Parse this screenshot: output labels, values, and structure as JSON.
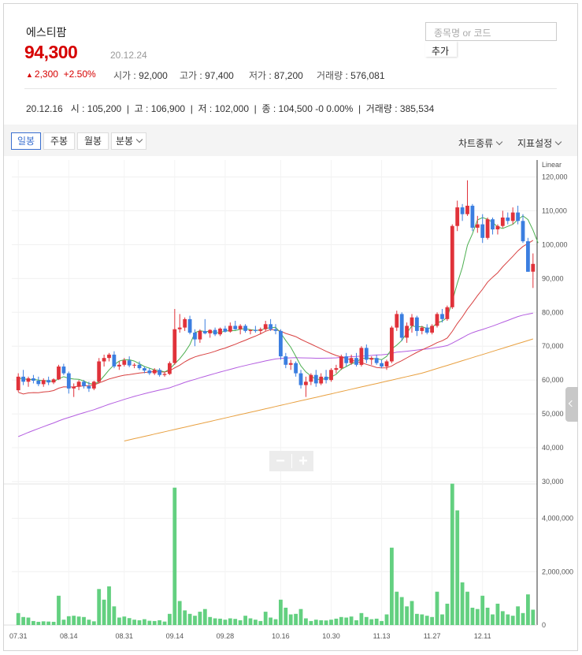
{
  "header": {
    "stock_name": "에스티팜",
    "price": "94,300",
    "date": "20.12.24",
    "change_arrow": "▲",
    "change": "2,300",
    "change_pct": "+2.50%",
    "open_label": "시가",
    "open": "92,000",
    "high_label": "고가",
    "high": "97,400",
    "low_label": "저가",
    "low": "87,200",
    "volume_label": "거래량",
    "volume": "576,081"
  },
  "search": {
    "placeholder": "종목명 or 코드",
    "add_label": "추가"
  },
  "daily_info": {
    "date": "20.12.16",
    "open_label": "시",
    "open": "105,200",
    "high_label": "고",
    "high": "106,900",
    "low_label": "저",
    "low": "102,000",
    "close_label": "종",
    "close": "104,500",
    "change": "-0",
    "change_pct": "0.00%",
    "volume_label": "거래량",
    "volume": "385,534"
  },
  "toolbar": {
    "tabs": [
      "일봉",
      "주봉",
      "월봉",
      "분봉"
    ],
    "active_tab": "일봉",
    "chart_type_label": "차트종류",
    "indicator_label": "지표설정"
  },
  "colors": {
    "up": "#e0323a",
    "down": "#3b7ee0",
    "volume": "#63d080",
    "ma5": "#4caf50",
    "ma20": "#d84040",
    "ma60": "#b45ee0",
    "ma120": "#e8a040",
    "price": "#d60000",
    "accent": "#3a6fd0"
  },
  "chart_data": {
    "type": "candlestick",
    "scale_label": "Linear",
    "price_ticks": [
      "120,000",
      "110,000",
      "100,000",
      "90,000",
      "80,000",
      "70,000",
      "60,000",
      "50,000",
      "40,000",
      "30,000"
    ],
    "price_range": [
      30000,
      125000
    ],
    "volume_ticks": [
      "4,000,000",
      "2,000,000",
      "0"
    ],
    "volume_range": [
      0,
      5200000
    ],
    "x_ticks": [
      {
        "label": "07.31",
        "i": 0
      },
      {
        "label": "08.14",
        "i": 10
      },
      {
        "label": "08.31",
        "i": 21
      },
      {
        "label": "09.14",
        "i": 31
      },
      {
        "label": "09.28",
        "i": 41
      },
      {
        "label": "10.16",
        "i": 52
      },
      {
        "label": "10.30",
        "i": 62
      },
      {
        "label": "11.13",
        "i": 72
      },
      {
        "label": "11.27",
        "i": 82
      },
      {
        "label": "12.11",
        "i": 92
      }
    ],
    "candles": [
      {
        "o": 57000,
        "h": 62000,
        "l": 56500,
        "c": 61000,
        "v": 450000
      },
      {
        "o": 61000,
        "h": 63000,
        "l": 58500,
        "c": 59500,
        "v": 300000
      },
      {
        "o": 59500,
        "h": 61000,
        "l": 58000,
        "c": 60500,
        "v": 280000
      },
      {
        "o": 60500,
        "h": 61500,
        "l": 59000,
        "c": 59800,
        "v": 150000
      },
      {
        "o": 59800,
        "h": 61000,
        "l": 58200,
        "c": 58800,
        "v": 120000
      },
      {
        "o": 58800,
        "h": 60500,
        "l": 58000,
        "c": 60000,
        "v": 140000
      },
      {
        "o": 60000,
        "h": 61000,
        "l": 58500,
        "c": 59300,
        "v": 130000
      },
      {
        "o": 59300,
        "h": 60500,
        "l": 58800,
        "c": 60200,
        "v": 120000
      },
      {
        "o": 60200,
        "h": 64500,
        "l": 60000,
        "c": 64000,
        "v": 1100000
      },
      {
        "o": 64000,
        "h": 64800,
        "l": 61500,
        "c": 62000,
        "v": 200000
      },
      {
        "o": 62000,
        "h": 62500,
        "l": 56000,
        "c": 57500,
        "v": 330000
      },
      {
        "o": 57500,
        "h": 59000,
        "l": 55000,
        "c": 58000,
        "v": 350000
      },
      {
        "o": 58000,
        "h": 60000,
        "l": 57000,
        "c": 59500,
        "v": 320000
      },
      {
        "o": 59500,
        "h": 60000,
        "l": 57500,
        "c": 58200,
        "v": 300000
      },
      {
        "o": 58200,
        "h": 59500,
        "l": 56500,
        "c": 57500,
        "v": 200000
      },
      {
        "o": 57500,
        "h": 59800,
        "l": 57000,
        "c": 59500,
        "v": 140000
      },
      {
        "o": 59500,
        "h": 66500,
        "l": 59000,
        "c": 65500,
        "v": 1350000
      },
      {
        "o": 65500,
        "h": 67500,
        "l": 64000,
        "c": 66500,
        "v": 950000
      },
      {
        "o": 66500,
        "h": 68000,
        "l": 65500,
        "c": 67500,
        "v": 1450000
      },
      {
        "o": 67500,
        "h": 68500,
        "l": 63500,
        "c": 64000,
        "v": 700000
      },
      {
        "o": 64000,
        "h": 65500,
        "l": 63000,
        "c": 64500,
        "v": 280000
      },
      {
        "o": 64500,
        "h": 66500,
        "l": 64000,
        "c": 65800,
        "v": 320000
      },
      {
        "o": 65800,
        "h": 67000,
        "l": 63800,
        "c": 64300,
        "v": 260000
      },
      {
        "o": 64300,
        "h": 65000,
        "l": 63500,
        "c": 64500,
        "v": 200000
      },
      {
        "o": 64500,
        "h": 65500,
        "l": 63000,
        "c": 63500,
        "v": 180000
      },
      {
        "o": 63500,
        "h": 64000,
        "l": 62000,
        "c": 62800,
        "v": 220000
      },
      {
        "o": 62800,
        "h": 63500,
        "l": 61500,
        "c": 62000,
        "v": 160000
      },
      {
        "o": 62000,
        "h": 63500,
        "l": 61500,
        "c": 63000,
        "v": 150000
      },
      {
        "o": 63000,
        "h": 63500,
        "l": 61000,
        "c": 61500,
        "v": 180000
      },
      {
        "o": 61500,
        "h": 62500,
        "l": 61000,
        "c": 61800,
        "v": 130000
      },
      {
        "o": 61800,
        "h": 65500,
        "l": 61500,
        "c": 65000,
        "v": 420000
      },
      {
        "o": 65000,
        "h": 81000,
        "l": 64500,
        "c": 75000,
        "v": 5150000
      },
      {
        "o": 75000,
        "h": 79500,
        "l": 74000,
        "c": 75500,
        "v": 900000
      },
      {
        "o": 75500,
        "h": 78500,
        "l": 74500,
        "c": 78000,
        "v": 550000
      },
      {
        "o": 78000,
        "h": 79000,
        "l": 73500,
        "c": 74000,
        "v": 420000
      },
      {
        "o": 74000,
        "h": 75000,
        "l": 70000,
        "c": 72000,
        "v": 350000
      },
      {
        "o": 72000,
        "h": 75000,
        "l": 71000,
        "c": 74500,
        "v": 500000
      },
      {
        "o": 74500,
        "h": 78000,
        "l": 73500,
        "c": 73800,
        "v": 600000
      },
      {
        "o": 73800,
        "h": 75000,
        "l": 72500,
        "c": 74800,
        "v": 300000
      },
      {
        "o": 74800,
        "h": 75500,
        "l": 73000,
        "c": 73500,
        "v": 250000
      },
      {
        "o": 73500,
        "h": 75500,
        "l": 73000,
        "c": 75200,
        "v": 240000
      },
      {
        "o": 75200,
        "h": 76000,
        "l": 74000,
        "c": 74300,
        "v": 200000
      },
      {
        "o": 74300,
        "h": 77000,
        "l": 74000,
        "c": 76000,
        "v": 250000
      },
      {
        "o": 76000,
        "h": 77500,
        "l": 74800,
        "c": 75000,
        "v": 230000
      },
      {
        "o": 75000,
        "h": 76500,
        "l": 73500,
        "c": 76000,
        "v": 180000
      },
      {
        "o": 76000,
        "h": 76500,
        "l": 74000,
        "c": 74500,
        "v": 350000
      },
      {
        "o": 74500,
        "h": 75000,
        "l": 73500,
        "c": 74800,
        "v": 250000
      },
      {
        "o": 74800,
        "h": 76000,
        "l": 74000,
        "c": 74500,
        "v": 200000
      },
      {
        "o": 74500,
        "h": 75500,
        "l": 73500,
        "c": 75000,
        "v": 150000
      },
      {
        "o": 75000,
        "h": 77500,
        "l": 74500,
        "c": 76500,
        "v": 500000
      },
      {
        "o": 76500,
        "h": 78000,
        "l": 74500,
        "c": 75000,
        "v": 280000
      },
      {
        "o": 75000,
        "h": 76500,
        "l": 73500,
        "c": 74500,
        "v": 220000
      },
      {
        "o": 74500,
        "h": 75000,
        "l": 66000,
        "c": 67000,
        "v": 950000
      },
      {
        "o": 67000,
        "h": 68000,
        "l": 63500,
        "c": 64500,
        "v": 650000
      },
      {
        "o": 64500,
        "h": 66000,
        "l": 63000,
        "c": 65000,
        "v": 400000
      },
      {
        "o": 65000,
        "h": 65500,
        "l": 61000,
        "c": 62000,
        "v": 420000
      },
      {
        "o": 62000,
        "h": 63000,
        "l": 57500,
        "c": 58500,
        "v": 600000
      },
      {
        "o": 58500,
        "h": 61000,
        "l": 55000,
        "c": 59500,
        "v": 250000
      },
      {
        "o": 59500,
        "h": 62000,
        "l": 58500,
        "c": 61500,
        "v": 150000
      },
      {
        "o": 61500,
        "h": 63000,
        "l": 58000,
        "c": 59000,
        "v": 200000
      },
      {
        "o": 59000,
        "h": 62000,
        "l": 58500,
        "c": 61000,
        "v": 180000
      },
      {
        "o": 61000,
        "h": 63000,
        "l": 59000,
        "c": 60000,
        "v": 170000
      },
      {
        "o": 60000,
        "h": 63500,
        "l": 59500,
        "c": 63000,
        "v": 200000
      },
      {
        "o": 63000,
        "h": 64500,
        "l": 62000,
        "c": 63500,
        "v": 240000
      },
      {
        "o": 63500,
        "h": 67500,
        "l": 63000,
        "c": 67000,
        "v": 300000
      },
      {
        "o": 67000,
        "h": 68000,
        "l": 64000,
        "c": 65000,
        "v": 280000
      },
      {
        "o": 65000,
        "h": 67500,
        "l": 64500,
        "c": 66500,
        "v": 320000
      },
      {
        "o": 66500,
        "h": 68000,
        "l": 64000,
        "c": 64500,
        "v": 180000
      },
      {
        "o": 64500,
        "h": 70000,
        "l": 64000,
        "c": 69500,
        "v": 450000
      },
      {
        "o": 69500,
        "h": 70500,
        "l": 65000,
        "c": 66000,
        "v": 300000
      },
      {
        "o": 66000,
        "h": 67000,
        "l": 64500,
        "c": 66500,
        "v": 220000
      },
      {
        "o": 66500,
        "h": 67500,
        "l": 64500,
        "c": 65000,
        "v": 240000
      },
      {
        "o": 65000,
        "h": 66000,
        "l": 63500,
        "c": 64000,
        "v": 150000
      },
      {
        "o": 64000,
        "h": 66000,
        "l": 63000,
        "c": 65500,
        "v": 400000
      },
      {
        "o": 65500,
        "h": 76000,
        "l": 65000,
        "c": 75500,
        "v": 2900000
      },
      {
        "o": 75500,
        "h": 80500,
        "l": 74500,
        "c": 79500,
        "v": 1250000
      },
      {
        "o": 79500,
        "h": 80000,
        "l": 71500,
        "c": 72500,
        "v": 1050000
      },
      {
        "o": 72500,
        "h": 77000,
        "l": 71000,
        "c": 76000,
        "v": 700000
      },
      {
        "o": 76000,
        "h": 79500,
        "l": 74000,
        "c": 78500,
        "v": 900000
      },
      {
        "o": 78500,
        "h": 79000,
        "l": 73000,
        "c": 74500,
        "v": 420000
      },
      {
        "o": 74500,
        "h": 76000,
        "l": 73500,
        "c": 75500,
        "v": 400000
      },
      {
        "o": 75500,
        "h": 76500,
        "l": 73500,
        "c": 74000,
        "v": 350000
      },
      {
        "o": 74000,
        "h": 76500,
        "l": 73500,
        "c": 76000,
        "v": 300000
      },
      {
        "o": 76000,
        "h": 80000,
        "l": 75500,
        "c": 79500,
        "v": 1250000
      },
      {
        "o": 79500,
        "h": 81000,
        "l": 77000,
        "c": 78000,
        "v": 400000
      },
      {
        "o": 78000,
        "h": 82000,
        "l": 77500,
        "c": 81500,
        "v": 800000
      },
      {
        "o": 81500,
        "h": 106000,
        "l": 81000,
        "c": 105500,
        "v": 5300000
      },
      {
        "o": 105500,
        "h": 113000,
        "l": 104000,
        "c": 111000,
        "v": 4300000
      },
      {
        "o": 111000,
        "h": 112000,
        "l": 107000,
        "c": 109000,
        "v": 1600000
      },
      {
        "o": 109000,
        "h": 119000,
        "l": 108500,
        "c": 111500,
        "v": 1250000
      },
      {
        "o": 111500,
        "h": 112000,
        "l": 104000,
        "c": 105000,
        "v": 650000
      },
      {
        "o": 105000,
        "h": 108500,
        "l": 103500,
        "c": 106000,
        "v": 600000
      },
      {
        "o": 106000,
        "h": 109000,
        "l": 100500,
        "c": 102000,
        "v": 1100000
      },
      {
        "o": 102000,
        "h": 108000,
        "l": 101500,
        "c": 107500,
        "v": 650000
      },
      {
        "o": 107500,
        "h": 108000,
        "l": 103000,
        "c": 104500,
        "v": 400000
      },
      {
        "o": 104500,
        "h": 106000,
        "l": 103000,
        "c": 105500,
        "v": 800000
      },
      {
        "o": 105500,
        "h": 110000,
        "l": 105000,
        "c": 108000,
        "v": 520000
      },
      {
        "o": 108000,
        "h": 109500,
        "l": 106000,
        "c": 107000,
        "v": 400000
      },
      {
        "o": 107000,
        "h": 111000,
        "l": 106000,
        "c": 109500,
        "v": 350000
      },
      {
        "o": 109500,
        "h": 111500,
        "l": 106000,
        "c": 107000,
        "v": 700000
      },
      {
        "o": 107000,
        "h": 109000,
        "l": 100500,
        "c": 101000,
        "v": 450000
      },
      {
        "o": 101000,
        "h": 102000,
        "l": 92000,
        "c": 92000,
        "v": 1150000
      },
      {
        "o": 92000,
        "h": 97400,
        "l": 87200,
        "c": 94300,
        "v": 576081
      }
    ],
    "ma5": [
      60500,
      60400,
      60100,
      60200,
      60000,
      59800,
      59700,
      59500,
      60400,
      61000,
      60500,
      60300,
      60200,
      59700,
      59000,
      58800,
      59500,
      61200,
      63000,
      64500,
      65600,
      66000,
      66000,
      65600,
      64800,
      64000,
      63500,
      63000,
      62800,
      62400,
      63200,
      64800,
      66300,
      68200,
      70500,
      74000,
      74600,
      74300,
      74400,
      74000,
      74000,
      74500,
      74600,
      74600,
      75000,
      75200,
      74900,
      74700,
      74700,
      75300,
      75400,
      75600,
      73900,
      71700,
      69700,
      67000,
      64200,
      62400,
      61200,
      60200,
      60200,
      60400,
      60900,
      61700,
      63200,
      64000,
      64800,
      65300,
      66400,
      66500,
      66400,
      66300,
      66000,
      67000,
      69200,
      70300,
      71700,
      73900,
      76000,
      75700,
      75800,
      75200,
      75500,
      76900,
      77400,
      78500,
      83300,
      88600,
      93300,
      99800,
      103200,
      107300,
      108000,
      107500,
      106600,
      105200,
      104800,
      105400,
      106000,
      107400,
      108500,
      107400,
      104300,
      100500
    ]
  }
}
